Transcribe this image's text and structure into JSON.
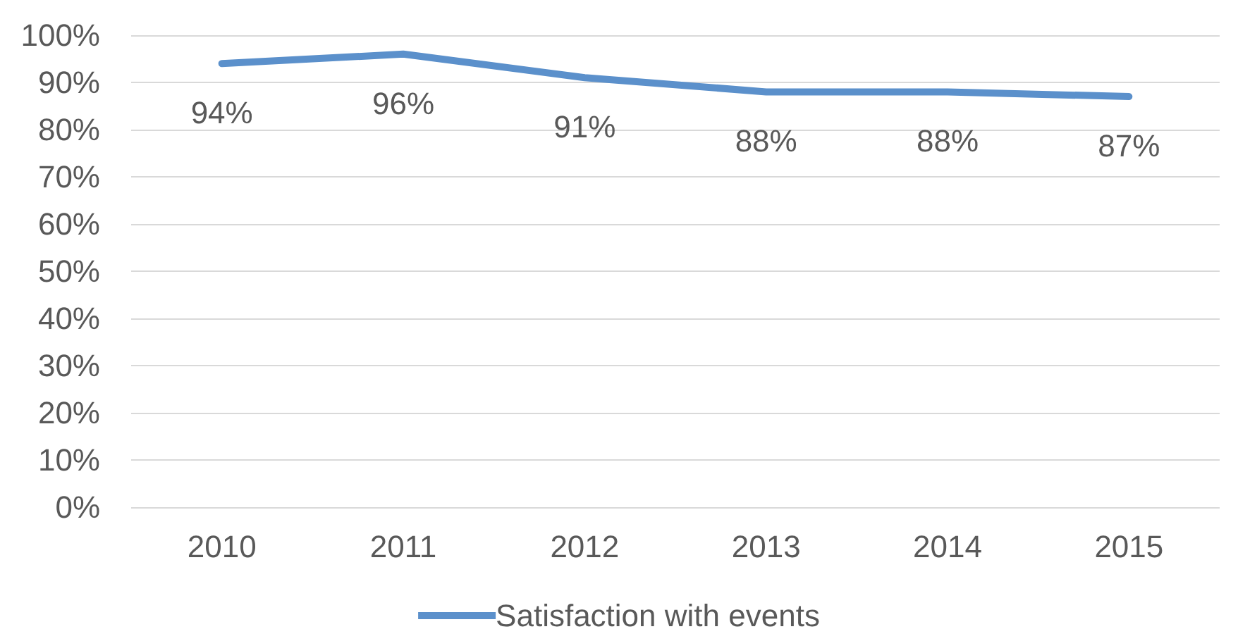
{
  "chart_data": {
    "type": "line",
    "categories": [
      "2010",
      "2011",
      "2012",
      "2013",
      "2014",
      "2015"
    ],
    "series": [
      {
        "name": "Satisfaction with events",
        "color": "#5b90cb",
        "values": [
          94,
          96,
          91,
          88,
          88,
          87
        ],
        "value_labels": [
          "94%",
          "96%",
          "91%",
          "88%",
          "88%",
          "87%"
        ]
      }
    ],
    "ylim": [
      0,
      100
    ],
    "yticks": [
      {
        "value": 0,
        "label": "0%"
      },
      {
        "value": 10,
        "label": "10%"
      },
      {
        "value": 20,
        "label": "20%"
      },
      {
        "value": 30,
        "label": "30%"
      },
      {
        "value": 40,
        "label": "40%"
      },
      {
        "value": 50,
        "label": "50%"
      },
      {
        "value": 60,
        "label": "60%"
      },
      {
        "value": 70,
        "label": "70%"
      },
      {
        "value": 80,
        "label": "80%"
      },
      {
        "value": 90,
        "label": "90%"
      },
      {
        "value": 100,
        "label": "100%"
      }
    ],
    "grid": "y",
    "legend": "bottom",
    "marker": "none",
    "line_style": "solid"
  }
}
